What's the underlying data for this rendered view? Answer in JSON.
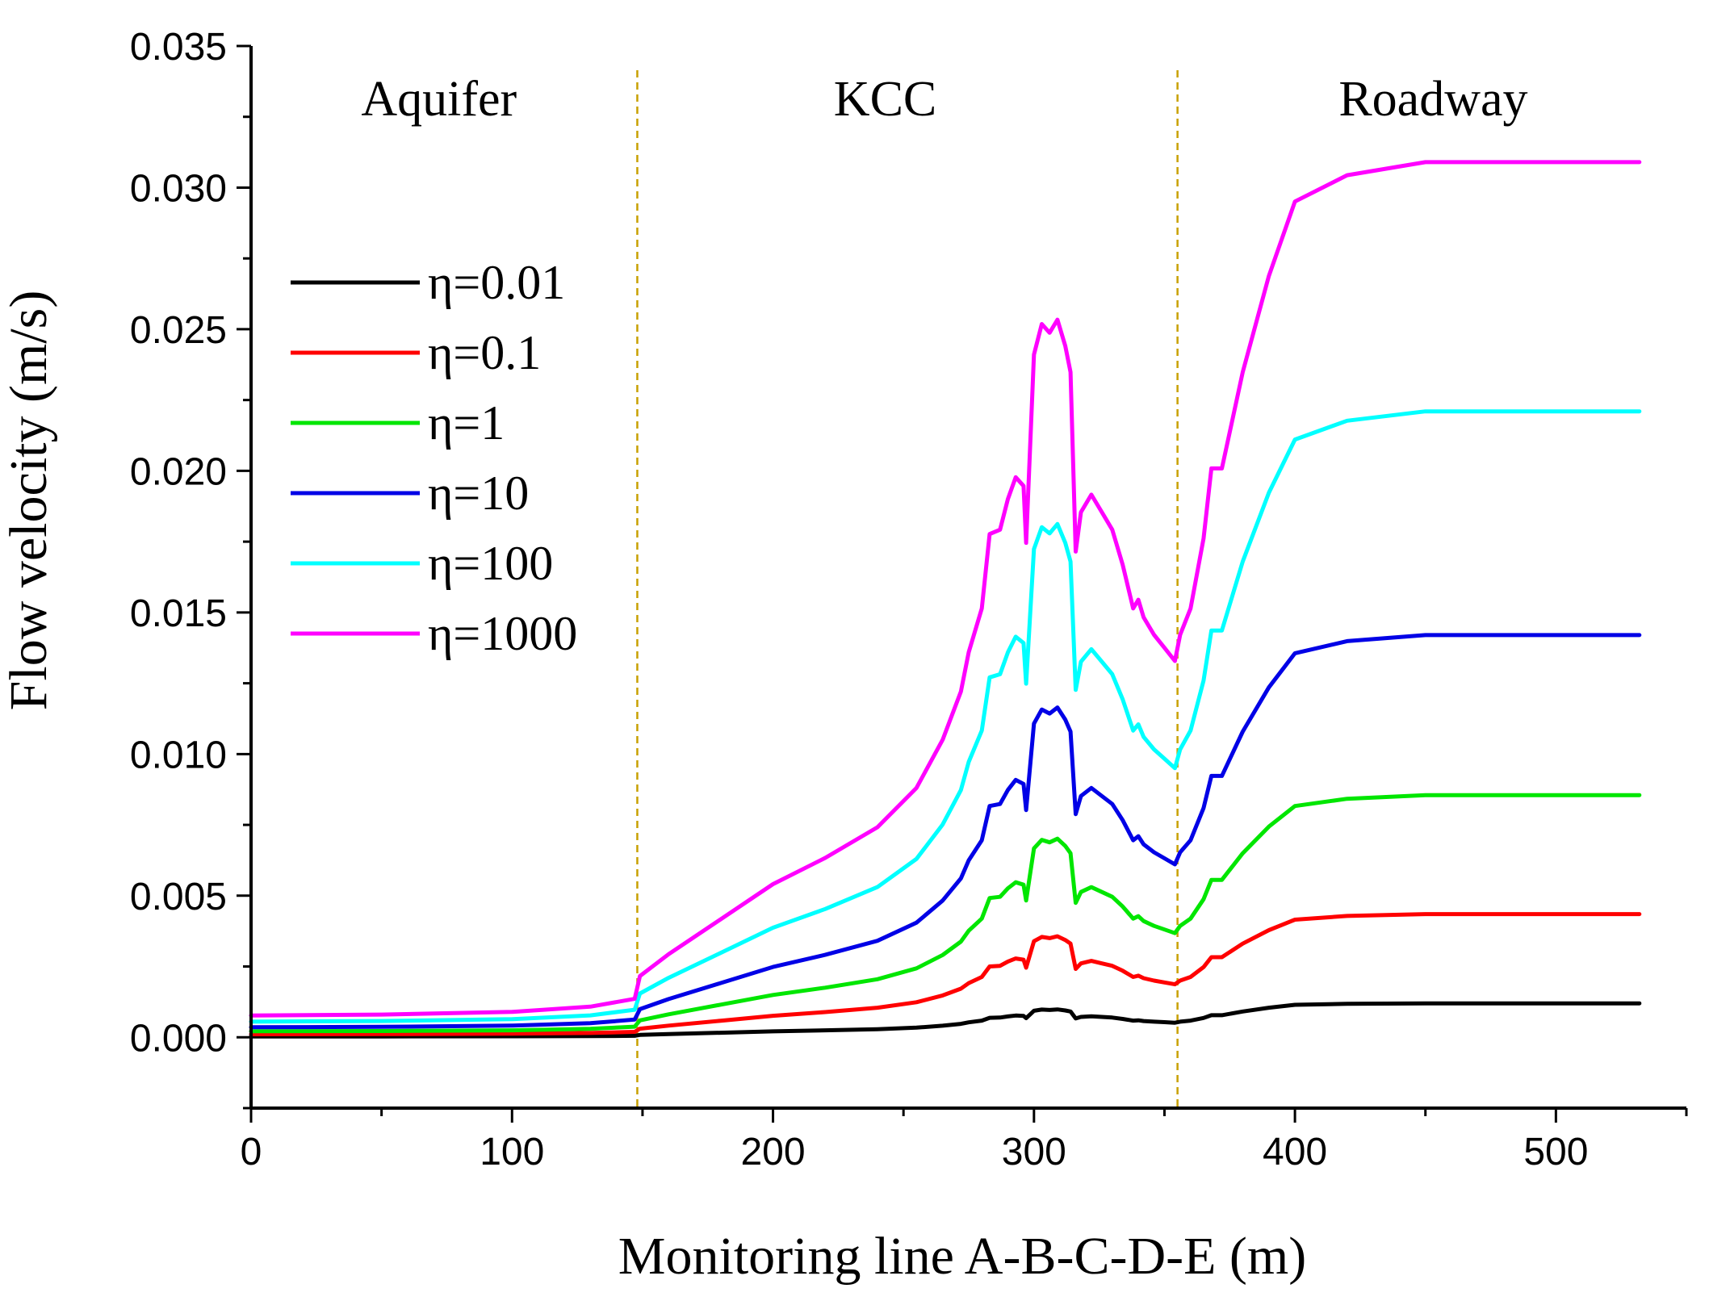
{
  "chart_data": {
    "type": "line",
    "title": "",
    "xlabel": "Monitoring line A-B-C-D-E (m)",
    "ylabel": "Flow velocity (m/s)",
    "xlim": [
      0,
      550
    ],
    "ylim": [
      -0.0025,
      0.035
    ],
    "x_ticks": [
      0,
      100,
      200,
      300,
      400,
      500
    ],
    "x_tick_labels": [
      "0",
      "100",
      "200",
      "300",
      "400",
      "500"
    ],
    "y_ticks": [
      0.0,
      0.005,
      0.01,
      0.015,
      0.02,
      0.025,
      0.03,
      0.035
    ],
    "y_tick_labels": [
      "0.000",
      "0.005",
      "0.010",
      "0.015",
      "0.020",
      "0.025",
      "0.030",
      "0.035"
    ],
    "regions": [
      {
        "label": "Aquifer",
        "center_x": 72
      },
      {
        "label": "KCC",
        "center_x": 243
      },
      {
        "label": "Roadway",
        "center_x": 453
      }
    ],
    "dividers_x": [
      148,
      355
    ],
    "divider_color": "#c8a000",
    "legend_position": "upper-left",
    "x": [
      0,
      50,
      100,
      130,
      147,
      149,
      160,
      180,
      200,
      220,
      240,
      255,
      265,
      272,
      275,
      280,
      283,
      287,
      290,
      293,
      296,
      297,
      300,
      303,
      306,
      309,
      312,
      314,
      316,
      318,
      322,
      326,
      330,
      334,
      338,
      340,
      342,
      346,
      350,
      354,
      356,
      360,
      365,
      368,
      372,
      380,
      390,
      400,
      420,
      450,
      480,
      532
    ],
    "series": [
      {
        "name": "η=0.01",
        "color": "#000000",
        "scale": 0.0012
      },
      {
        "name": "η=0.1",
        "color": "#ff0000",
        "scale": 0.00435
      },
      {
        "name": "η=1",
        "color": "#00e600",
        "scale": 0.00855
      },
      {
        "name": "η=10",
        "color": "#0000e6",
        "scale": 0.0142
      },
      {
        "name": "η=100",
        "color": "#00ffff",
        "scale": 0.0221
      },
      {
        "name": "η=1000",
        "color": "#ff00ff",
        "scale": 0.0309
      }
    ],
    "profile": [
      0.025,
      0.026,
      0.029,
      0.035,
      0.044,
      0.07,
      0.095,
      0.135,
      0.175,
      0.205,
      0.24,
      0.285,
      0.34,
      0.395,
      0.44,
      0.49,
      0.575,
      0.58,
      0.615,
      0.64,
      0.63,
      0.565,
      0.78,
      0.815,
      0.805,
      0.82,
      0.79,
      0.76,
      0.555,
      0.6,
      0.62,
      0.6,
      0.58,
      0.54,
      0.49,
      0.5,
      0.48,
      0.46,
      0.445,
      0.43,
      0.46,
      0.49,
      0.57,
      0.65,
      0.65,
      0.76,
      0.87,
      0.955,
      0.985,
      1.0,
      1.0,
      1.0
    ]
  }
}
